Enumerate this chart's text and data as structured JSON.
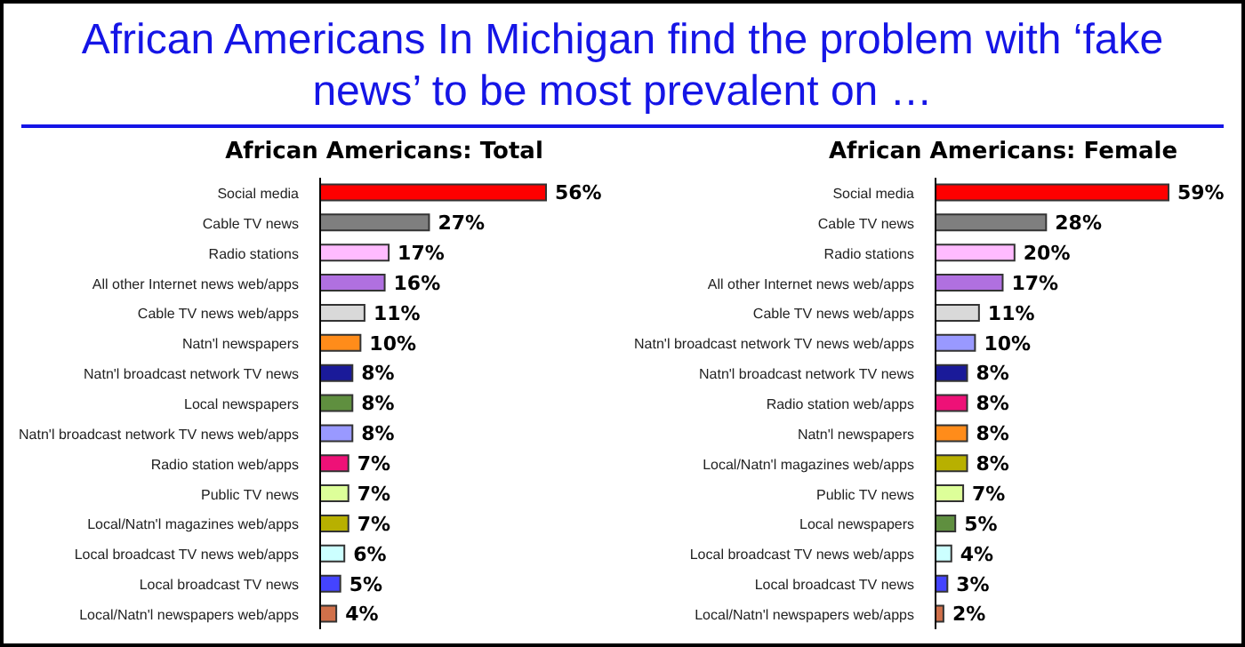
{
  "chart_data": [
    {
      "type": "other",
      "title": "African Americans In Michigan find the problem with ‘fake news’ to be most prevalent on …"
    },
    {
      "type": "bar",
      "orientation": "horizontal",
      "title": "African Americans: Total",
      "categories": [
        "Social media",
        "Cable TV news",
        "Radio stations",
        "All other Internet news web/apps",
        "Cable TV news web/apps",
        "Natn'l newspapers",
        "Natn'l broadcast network TV news",
        "Local newspapers",
        "Natn'l broadcast network TV news web/apps",
        "Radio station web/apps",
        "Public TV news",
        "Local/Natn'l magazines web/apps",
        "Local broadcast TV news web/apps",
        "Local broadcast TV news",
        "Local/Natn'l newspapers web/apps"
      ],
      "values": [
        56,
        27,
        17,
        16,
        11,
        10,
        8,
        8,
        8,
        7,
        7,
        7,
        6,
        5,
        4
      ],
      "value_labels": [
        "56%",
        "27%",
        "17%",
        "16%",
        "11%",
        "10%",
        "8%",
        "8%",
        "8%",
        "7%",
        "7%",
        "7%",
        "6%",
        "5%",
        "4%"
      ],
      "colors": [
        "#ff0000",
        "#7f7f7f",
        "#ffbbff",
        "#b070e0",
        "#d9d9d9",
        "#ff8c1a",
        "#1a1a99",
        "#5f8f3f",
        "#9999ff",
        "#ee1177",
        "#ddff99",
        "#b8b000",
        "#ccffff",
        "#4444ff",
        "#d0704a"
      ]
    },
    {
      "type": "bar",
      "orientation": "horizontal",
      "title": "African Americans: Female",
      "categories": [
        "Social media",
        "Cable TV news",
        "Radio stations",
        "All other Internet news web/apps",
        "Cable TV news web/apps",
        "Natn'l broadcast network TV news web/apps",
        "Natn'l broadcast network TV news",
        "Radio station web/apps",
        "Natn'l newspapers",
        "Local/Natn'l magazines web/apps",
        "Public TV news",
        "Local newspapers",
        "Local broadcast TV news web/apps",
        "Local broadcast TV news",
        "Local/Natn'l newspapers web/apps"
      ],
      "values": [
        59,
        28,
        20,
        17,
        11,
        10,
        8,
        8,
        8,
        8,
        7,
        5,
        4,
        3,
        2
      ],
      "value_labels": [
        "59%",
        "28%",
        "20%",
        "17%",
        "11%",
        "10%",
        "8%",
        "8%",
        "8%",
        "8%",
        "7%",
        "5%",
        "4%",
        "3%",
        "2%"
      ],
      "colors": [
        "#ff0000",
        "#7f7f7f",
        "#ffbbff",
        "#b070e0",
        "#d9d9d9",
        "#9999ff",
        "#1a1a99",
        "#ee1177",
        "#ff8c1a",
        "#b8b000",
        "#ddff99",
        "#5f8f3f",
        "#ccffff",
        "#4444ff",
        "#d0704a"
      ]
    }
  ]
}
